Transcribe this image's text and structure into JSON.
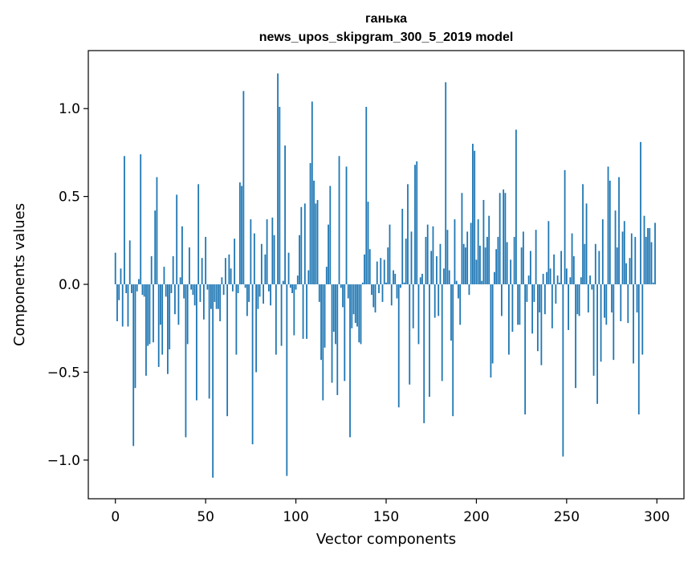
{
  "chart_data": {
    "type": "bar",
    "title": "ганька",
    "subtitle": "news_upos_skipgram_300_5_2019 model",
    "xlabel": "Vector components",
    "ylabel": "Components values",
    "xlim": [
      -15,
      315
    ],
    "ylim": [
      -1.22,
      1.33
    ],
    "xticks": [
      0,
      50,
      100,
      150,
      200,
      250,
      300
    ],
    "xtick_labels": [
      "0",
      "50",
      "100",
      "150",
      "200",
      "250",
      "300"
    ],
    "yticks": [
      -1.0,
      -0.5,
      0.0,
      0.5,
      1.0
    ],
    "ytick_labels": [
      "−1.0",
      "−0.5",
      "0.0",
      "0.5",
      "1.0"
    ],
    "grid": false,
    "bar_color": "#1f77b4",
    "x": [
      0,
      1,
      2,
      3,
      4,
      5,
      6,
      7,
      8,
      9,
      10,
      11,
      12,
      13,
      14,
      15,
      16,
      17,
      18,
      19,
      20,
      21,
      22,
      23,
      24,
      25,
      26,
      27,
      28,
      29,
      30,
      31,
      32,
      33,
      34,
      35,
      36,
      37,
      38,
      39,
      40,
      41,
      42,
      43,
      44,
      45,
      46,
      47,
      48,
      49,
      50,
      51,
      52,
      53,
      54,
      55,
      56,
      57,
      58,
      59,
      60,
      61,
      62,
      63,
      64,
      65,
      66,
      67,
      68,
      69,
      70,
      71,
      72,
      73,
      74,
      75,
      76,
      77,
      78,
      79,
      80,
      81,
      82,
      83,
      84,
      85,
      86,
      87,
      88,
      89,
      90,
      91,
      92,
      93,
      94,
      95,
      96,
      97,
      98,
      99,
      100,
      101,
      102,
      103,
      104,
      105,
      106,
      107,
      108,
      109,
      110,
      111,
      112,
      113,
      114,
      115,
      116,
      117,
      118,
      119,
      120,
      121,
      122,
      123,
      124,
      125,
      126,
      127,
      128,
      129,
      130,
      131,
      132,
      133,
      134,
      135,
      136,
      137,
      138,
      139,
      140,
      141,
      142,
      143,
      144,
      145,
      146,
      147,
      148,
      149,
      150,
      151,
      152,
      153,
      154,
      155,
      156,
      157,
      158,
      159,
      160,
      161,
      162,
      163,
      164,
      165,
      166,
      167,
      168,
      169,
      170,
      171,
      172,
      173,
      174,
      175,
      176,
      177,
      178,
      179,
      180,
      181,
      182,
      183,
      184,
      185,
      186,
      187,
      188,
      189,
      190,
      191,
      192,
      193,
      194,
      195,
      196,
      197,
      198,
      199,
      200,
      201,
      202,
      203,
      204,
      205,
      206,
      207,
      208,
      209,
      210,
      211,
      212,
      213,
      214,
      215,
      216,
      217,
      218,
      219,
      220,
      221,
      222,
      223,
      224,
      225,
      226,
      227,
      228,
      229,
      230,
      231,
      232,
      233,
      234,
      235,
      236,
      237,
      238,
      239,
      240,
      241,
      242,
      243,
      244,
      245,
      246,
      247,
      248,
      249,
      250,
      251,
      252,
      253,
      254,
      255,
      256,
      257,
      258,
      259,
      260,
      261,
      262,
      263,
      264,
      265,
      266,
      267,
      268,
      269,
      270,
      271,
      272,
      273,
      274,
      275,
      276,
      277,
      278,
      279,
      280,
      281,
      282,
      283,
      284,
      285,
      286,
      287,
      288,
      289,
      290,
      291,
      292,
      293,
      294,
      295,
      296,
      297,
      298,
      299
    ],
    "values": [
      0.18,
      -0.21,
      -0.09,
      0.09,
      -0.24,
      0.73,
      -0.05,
      -0.24,
      0.25,
      -0.05,
      -0.92,
      -0.59,
      -0.04,
      0.03,
      0.74,
      -0.06,
      -0.07,
      -0.52,
      -0.35,
      -0.34,
      0.16,
      -0.33,
      0.42,
      0.61,
      -0.47,
      -0.23,
      -0.4,
      0.1,
      -0.07,
      -0.51,
      -0.37,
      -0.05,
      0.16,
      -0.17,
      0.51,
      -0.23,
      0.04,
      0.33,
      -0.08,
      -0.87,
      -0.34,
      0.21,
      -0.03,
      -0.06,
      -0.12,
      -0.66,
      0.57,
      -0.1,
      0.15,
      -0.2,
      0.27,
      -0.03,
      -0.65,
      -0.14,
      -1.1,
      -0.1,
      -0.14,
      -0.14,
      -0.21,
      0.04,
      -0.06,
      0.15,
      -0.75,
      0.17,
      0.09,
      -0.04,
      0.26,
      -0.4,
      -0.05,
      0.58,
      0.56,
      1.1,
      -0.02,
      -0.18,
      -0.1,
      0.37,
      -0.91,
      0.29,
      -0.5,
      -0.14,
      -0.07,
      0.23,
      -0.11,
      0.17,
      0.37,
      -0.04,
      -0.12,
      0.38,
      0.28,
      -0.4,
      1.2,
      1.01,
      -0.35,
      0.02,
      0.79,
      -1.09,
      0.18,
      -0.02,
      -0.05,
      -0.29,
      -0.03,
      0.05,
      0.28,
      0.44,
      -0.31,
      0.46,
      -0.31,
      0.08,
      0.69,
      1.04,
      0.59,
      0.46,
      0.48,
      -0.1,
      -0.43,
      -0.66,
      -0.36,
      0.1,
      0.34,
      0.56,
      -0.56,
      -0.27,
      -0.34,
      -0.63,
      0.73,
      -0.02,
      -0.13,
      -0.55,
      0.67,
      -0.08,
      -0.87,
      -0.25,
      -0.17,
      -0.22,
      -0.24,
      -0.33,
      -0.34,
      0.01,
      0.17,
      1.01,
      0.47,
      0.2,
      -0.06,
      -0.13,
      -0.16,
      0.13,
      -0.05,
      0.15,
      -0.1,
      0.14,
      0.01,
      0.21,
      0.34,
      -0.12,
      0.08,
      0.06,
      -0.08,
      -0.7,
      -0.02,
      0.43,
      0.01,
      0.26,
      0.57,
      -0.57,
      0.3,
      -0.25,
      0.68,
      0.7,
      -0.34,
      0.04,
      0.06,
      -0.79,
      0.27,
      0.34,
      -0.64,
      0.19,
      0.33,
      -0.19,
      0.16,
      -0.18,
      0.23,
      -0.55,
      0.09,
      1.15,
      0.31,
      0.08,
      -0.32,
      -0.75,
      0.37,
      0.02,
      -0.08,
      -0.23,
      0.52,
      0.23,
      0.21,
      0.3,
      -0.06,
      0.35,
      0.8,
      0.76,
      0.14,
      0.37,
      0.22,
      0.02,
      0.48,
      0.21,
      0.27,
      0.39,
      -0.53,
      -0.45,
      0.07,
      0.2,
      0.27,
      0.52,
      -0.18,
      0.54,
      0.52,
      0.24,
      -0.4,
      0.14,
      -0.27,
      0.27,
      0.88,
      -0.23,
      -0.23,
      0.21,
      0.3,
      -0.74,
      -0.1,
      0.05,
      0.19,
      -0.28,
      -0.1,
      0.31,
      -0.38,
      -0.16,
      -0.46,
      0.06,
      -0.17,
      0.07,
      0.36,
      0.09,
      -0.25,
      0.17,
      -0.11,
      0.05,
      0.01,
      0.19,
      -0.98,
      0.65,
      0.09,
      -0.26,
      0.04,
      0.29,
      0.16,
      -0.59,
      -0.17,
      -0.18,
      0.04,
      0.57,
      0.23,
      0.46,
      -0.16,
      0.05,
      -0.03,
      -0.52,
      0.23,
      -0.68,
      0.19,
      -0.44,
      0.37,
      -0.19,
      -0.23,
      0.67,
      0.59,
      -0.16,
      -0.43,
      0.42,
      0.21,
      0.61,
      -0.21,
      0.3,
      0.36,
      0.12,
      -0.22,
      0.15,
      0.29,
      -0.45,
      0.27,
      -0.16,
      -0.74,
      0.81,
      -0.4,
      0.39,
      0.27,
      0.32,
      0.32,
      0.24,
      0.01,
      0.35
    ]
  }
}
